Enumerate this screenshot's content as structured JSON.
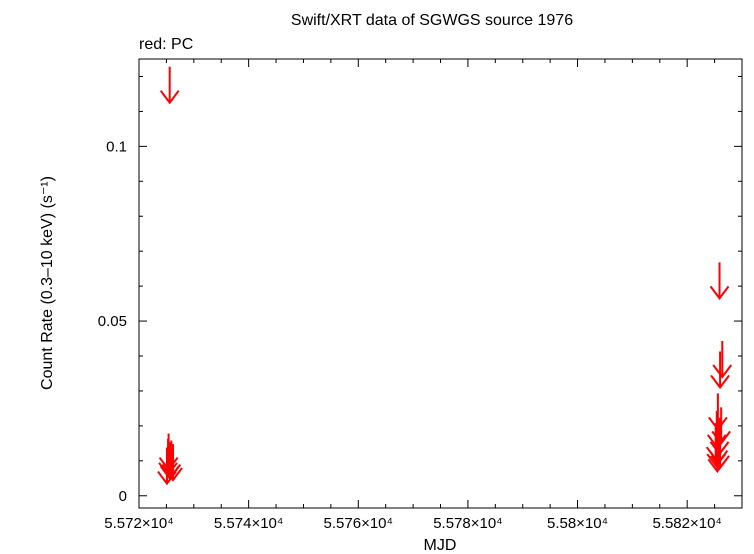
{
  "chart_data": {
    "type": "scatter",
    "title": "Swift/XRT data of SGWGS source 1976",
    "subtitle": "red: PC",
    "xlabel": "MJD",
    "ylabel": "Count Rate (0.3–10 keV) (s⁻¹)",
    "xlim": [
      55720,
      55830
    ],
    "ylim": [
      -0.0035,
      0.125
    ],
    "x_ticks": [
      55720,
      55740,
      55760,
      55780,
      55800,
      55820
    ],
    "x_tick_labels": [
      "5.572×10⁴",
      "5.574×10⁴",
      "5.576×10⁴",
      "5.578×10⁴",
      "5.58×10⁴",
      "5.582×10⁴"
    ],
    "y_ticks": [
      0,
      0.05,
      0.1
    ],
    "y_tick_labels": [
      "0",
      "0.05",
      "0.1"
    ],
    "grid": false,
    "marker": "upper-limit-arrow",
    "series": [
      {
        "color": "#ff0000",
        "points": [
          {
            "x": 55725.6,
            "y": 0.1125
          },
          {
            "x": 55725.3,
            "y": 0.006
          },
          {
            "x": 55725.6,
            "y": 0.005
          },
          {
            "x": 55725.9,
            "y": 0.0055
          },
          {
            "x": 55726.2,
            "y": 0.0045
          },
          {
            "x": 55725.1,
            "y": 0.0035
          },
          {
            "x": 55725.4,
            "y": 0.0075
          },
          {
            "x": 55825.9,
            "y": 0.0565
          },
          {
            "x": 55826.4,
            "y": 0.034
          },
          {
            "x": 55826.0,
            "y": 0.031
          },
          {
            "x": 55825.6,
            "y": 0.019
          },
          {
            "x": 55826.2,
            "y": 0.015
          },
          {
            "x": 55825.4,
            "y": 0.014
          },
          {
            "x": 55825.9,
            "y": 0.012
          },
          {
            "x": 55825.2,
            "y": 0.0105
          },
          {
            "x": 55825.7,
            "y": 0.0095
          },
          {
            "x": 55825.3,
            "y": 0.0085
          },
          {
            "x": 55826.0,
            "y": 0.008
          },
          {
            "x": 55825.5,
            "y": 0.007
          }
        ]
      }
    ]
  }
}
